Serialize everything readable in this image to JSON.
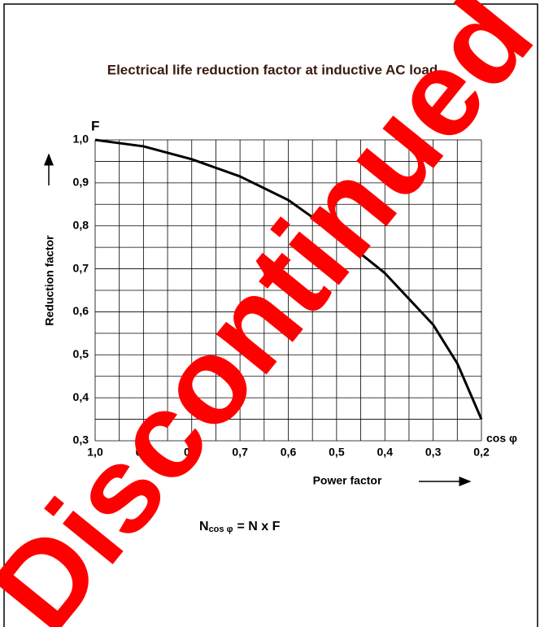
{
  "chart_data": {
    "type": "line",
    "title": "Electrical life reduction factor at inductive AC load",
    "y_symbol": "F",
    "ylabel": "Reduction factor",
    "xlabel": "Power factor",
    "x_symbol": "cos φ",
    "formula": {
      "lhs": "N",
      "lhs_sub": "cos φ",
      "rhs": "= N x F"
    },
    "watermark": "Discontinued",
    "x": [
      1.0,
      0.9,
      0.8,
      0.7,
      0.6,
      0.5,
      0.4,
      0.3,
      0.25,
      0.2
    ],
    "values": [
      1.0,
      0.985,
      0.955,
      0.915,
      0.86,
      0.78,
      0.69,
      0.57,
      0.48,
      0.35
    ],
    "color": "#000000",
    "xlim": [
      1.0,
      0.2
    ],
    "ylim": [
      0.3,
      1.0
    ],
    "xticks": [
      {
        "value": 1.0,
        "label": "1,0"
      },
      {
        "value": 0.9,
        "label": "0,9"
      },
      {
        "value": 0.8,
        "label": "0,8"
      },
      {
        "value": 0.7,
        "label": "0,7"
      },
      {
        "value": 0.6,
        "label": "0,6"
      },
      {
        "value": 0.5,
        "label": "0,5"
      },
      {
        "value": 0.4,
        "label": "0,4"
      },
      {
        "value": 0.3,
        "label": "0,3"
      },
      {
        "value": 0.2,
        "label": "0,2"
      }
    ],
    "yticks": [
      {
        "value": 0.3,
        "label": "0,3"
      },
      {
        "value": 0.4,
        "label": "0,4"
      },
      {
        "value": 0.5,
        "label": "0,5"
      },
      {
        "value": 0.6,
        "label": "0,6"
      },
      {
        "value": 0.7,
        "label": "0,7"
      },
      {
        "value": 0.8,
        "label": "0,8"
      },
      {
        "value": 0.9,
        "label": "0,9"
      },
      {
        "value": 1.0,
        "label": "1,0"
      }
    ],
    "xgrid": [
      0.95,
      0.85,
      0.75,
      0.65,
      0.55,
      0.45,
      0.35,
      0.25
    ],
    "ygrid": [
      0.35,
      0.45,
      0.55,
      0.65,
      0.75,
      0.85,
      0.95
    ],
    "grid": true
  }
}
